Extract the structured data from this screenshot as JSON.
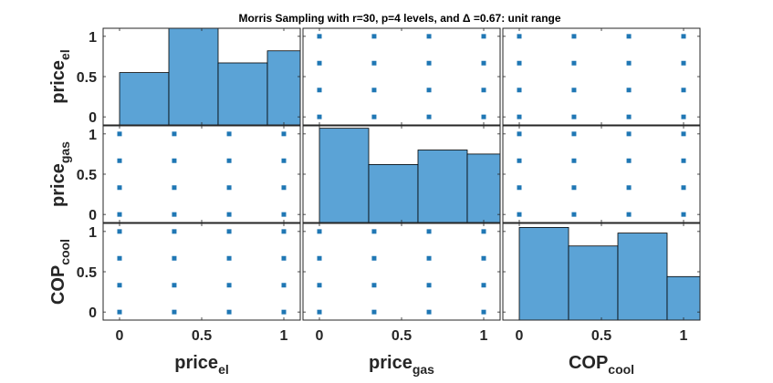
{
  "chart_data": {
    "type": "scatter-matrix",
    "title": "Morris Sampling with r=30, p=4 levels, and Δ =0.67: unit range",
    "variables": [
      {
        "base": "price",
        "sub": "el"
      },
      {
        "base": "price",
        "sub": "gas"
      },
      {
        "base": "COP",
        "sub": "cool"
      }
    ],
    "levels": [
      0,
      0.333,
      0.667,
      1
    ],
    "axis_range": [
      -0.1,
      1.1
    ],
    "x_ticks": [
      "0",
      "0.5",
      "1"
    ],
    "y_ticks": [
      "0",
      "0.5",
      "1"
    ],
    "histograms": [
      {
        "variable": "price_el",
        "bin_edges": [
          0,
          0.3,
          0.6,
          0.9,
          1.2
        ],
        "heights": [
          0.55,
          1.15,
          0.67,
          0.82
        ]
      },
      {
        "variable": "price_gas",
        "bin_edges": [
          0,
          0.3,
          0.6,
          0.9,
          1.2
        ],
        "heights": [
          1.07,
          0.62,
          0.8,
          0.75
        ]
      },
      {
        "variable": "COP_cool",
        "bin_edges": [
          0,
          0.3,
          0.6,
          0.9,
          1.2
        ],
        "heights": [
          1.05,
          0.82,
          0.98,
          0.44
        ]
      }
    ],
    "colors": {
      "bar_fill": "#5ba3d6",
      "marker": "#1f77b4",
      "edge": "#000000"
    }
  }
}
